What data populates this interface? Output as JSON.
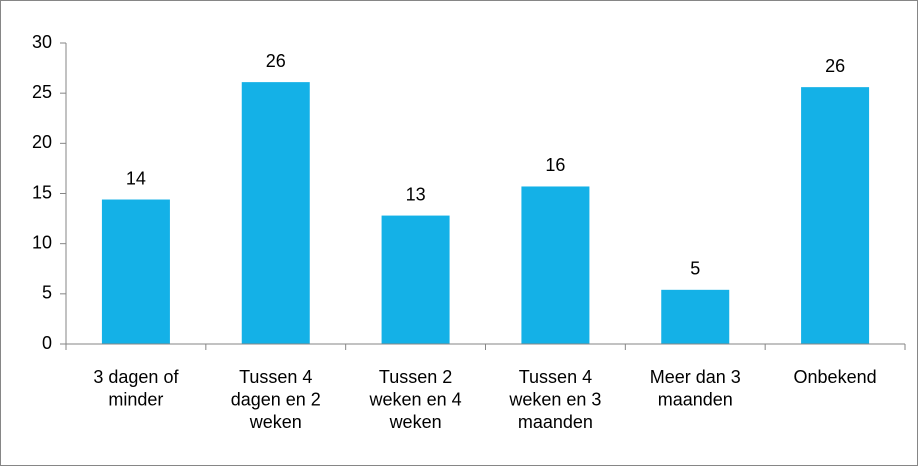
{
  "chart_data": {
    "type": "bar",
    "categories": [
      "3 dagen of minder",
      "Tussen 4 dagen en 2 weken",
      "Tussen 2 weken en 4 weken",
      "Tussen 4 weken en 3 maanden",
      "Meer dan 3 maanden",
      "Onbekend"
    ],
    "values": [
      14.4,
      26.1,
      12.8,
      15.7,
      5.4,
      25.6
    ],
    "value_labels": [
      "14",
      "26",
      "13",
      "16",
      "5",
      "26"
    ],
    "color": "#14b1e7",
    "ylim": [
      0,
      30
    ],
    "yticks": [
      0,
      5,
      10,
      15,
      20,
      25,
      30
    ],
    "grid": false
  }
}
